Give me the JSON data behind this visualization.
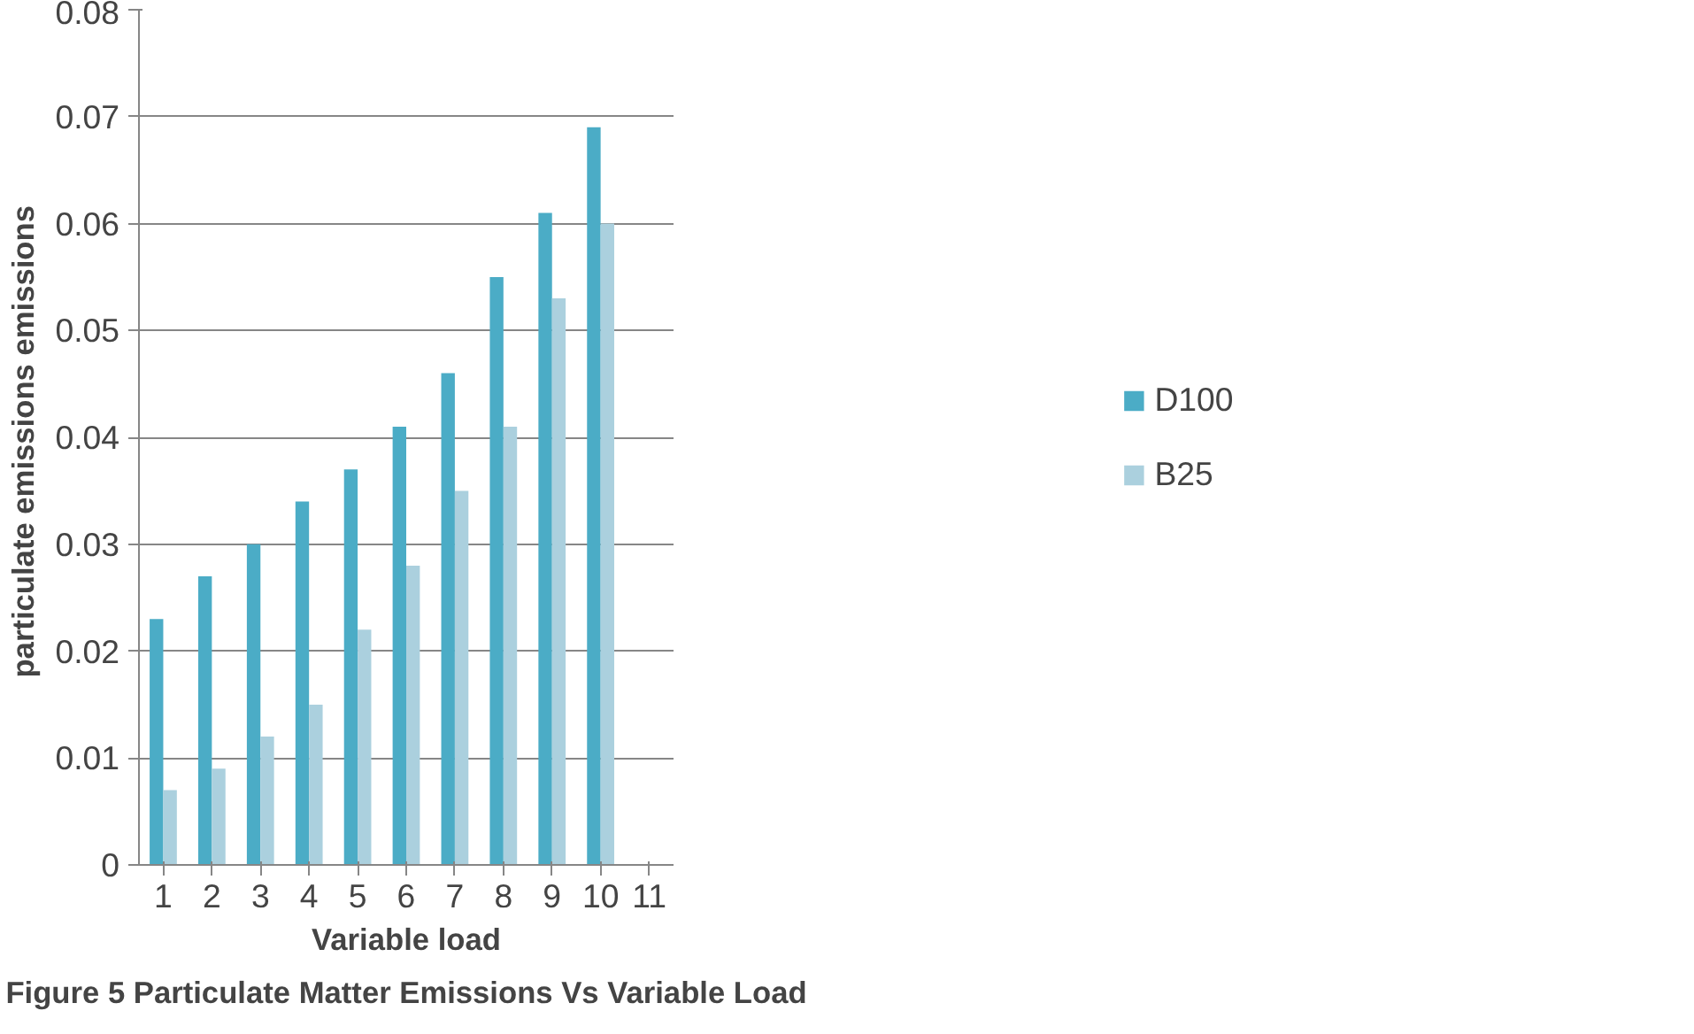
{
  "chart_data": {
    "type": "bar",
    "xlabel": "Variable load",
    "ylabel": "particulate emissions  emissions",
    "annotations": [
      "Figure 5 Particulate Matter Emissions Vs Variable Load"
    ],
    "categories": [
      "1",
      "2",
      "3",
      "4",
      "5",
      "6",
      "7",
      "8",
      "9",
      "10",
      "11"
    ],
    "series": [
      {
        "name": "D100",
        "color": "#4bacc6",
        "values": [
          0.023,
          0.027,
          0.03,
          0.034,
          0.037,
          0.041,
          0.046,
          0.055,
          0.061,
          0.069,
          null
        ]
      },
      {
        "name": "B25",
        "color": "#abd0de",
        "values": [
          0.007,
          0.009,
          0.012,
          0.015,
          0.022,
          0.028,
          0.035,
          0.041,
          0.053,
          0.06,
          null
        ]
      }
    ],
    "ylim": [
      0,
      0.08
    ],
    "yticks": [
      0,
      {
        "value": 0.01,
        "label": "0.01"
      },
      {
        "value": 0.02,
        "label": "0.02"
      },
      {
        "value": 0.03,
        "label": "0.03"
      },
      {
        "value": 0.04,
        "label": "0.04"
      },
      {
        "value": 0.05,
        "label": "0.05"
      },
      {
        "value": 0.06,
        "label": "0.06"
      },
      {
        "value": 0.07,
        "label": "0.07"
      },
      {
        "value": 0.08,
        "label": "0.08"
      }
    ],
    "grid": "y",
    "legend": "right"
  }
}
